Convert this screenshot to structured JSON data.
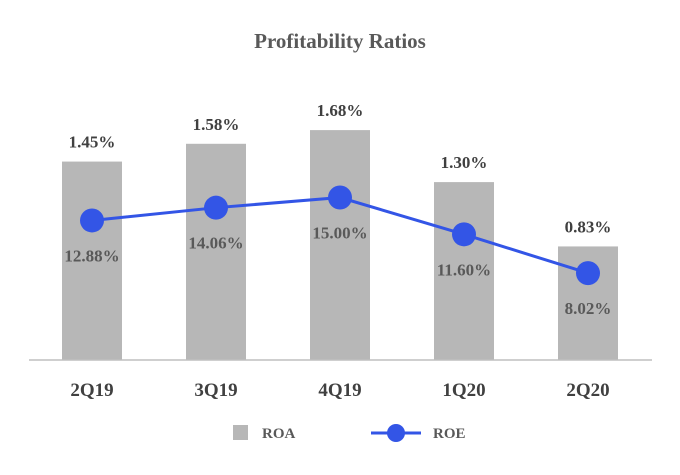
{
  "chart_data": {
    "type": "bar",
    "title": "Profitability Ratios",
    "categories": [
      "2Q19",
      "3Q19",
      "4Q19",
      "1Q20",
      "2Q20"
    ],
    "series": [
      {
        "name": "ROA",
        "type": "bar",
        "values": [
          1.45,
          1.58,
          1.68,
          1.3,
          0.83
        ],
        "labels": [
          "1.45%",
          "1.58%",
          "1.68%",
          "1.30%",
          "0.83%"
        ],
        "color": "#b7b7b7"
      },
      {
        "name": "ROE",
        "type": "line",
        "values": [
          12.88,
          14.06,
          15.0,
          11.6,
          8.02
        ],
        "labels": [
          "12.88%",
          "14.06%",
          "15.00%",
          "11.60%",
          "8.02%"
        ],
        "color": "#3355e6"
      }
    ],
    "y_primary": {
      "series": "ROA",
      "ylim": [
        0,
        1.9
      ]
    },
    "y_secondary": {
      "series": "ROE",
      "ylim": [
        0,
        24
      ]
    },
    "legend": {
      "position": "bottom",
      "items": [
        "ROA",
        "ROE"
      ]
    },
    "grid": false,
    "xlabel": "",
    "ylabel": ""
  }
}
